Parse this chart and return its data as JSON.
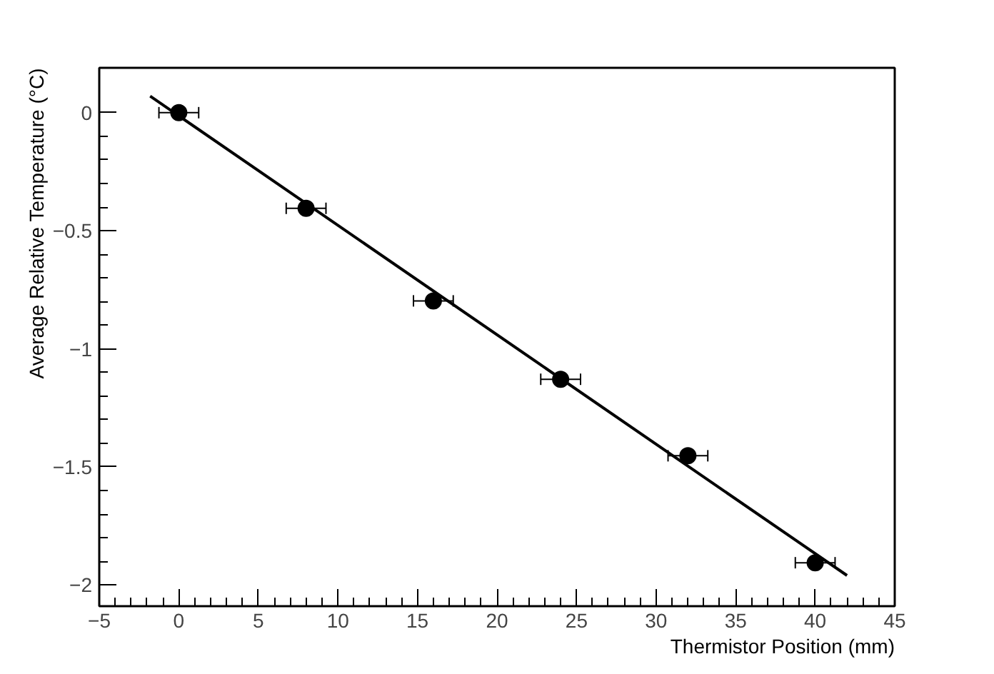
{
  "chart_data": {
    "type": "scatter",
    "xlabel": "Thermistor Position (mm)",
    "ylabel": "Average Relative Temperature (°C)",
    "xlim": [
      -5,
      45
    ],
    "ylim": [
      -2.09,
      0.19
    ],
    "xticks": [
      -5,
      0,
      5,
      10,
      15,
      20,
      25,
      30,
      35,
      40,
      45
    ],
    "yticks": [
      {
        "value": -2,
        "label": "−2"
      },
      {
        "value": -1.5,
        "label": "−1.5"
      },
      {
        "value": -1,
        "label": "−1"
      },
      {
        "value": -0.5,
        "label": "−0.5"
      },
      0
    ],
    "grid": false,
    "series": [
      {
        "color": "#000000",
        "marker": "circle",
        "x": [
          0,
          8,
          16,
          24,
          32,
          40
        ],
        "values": [
          0,
          -0.405,
          -0.797,
          -1.129,
          -1.453,
          -1.906
        ],
        "xerrors": [
          1.25,
          1.25,
          1.25,
          1.25,
          1.25,
          1.25
        ]
      },
      {
        "type": "line",
        "color": "#000000",
        "marker": "none",
        "line_style": "solid",
        "x": [
          -1.8,
          42
        ],
        "values": [
          0.07,
          -1.96
        ]
      }
    ]
  }
}
